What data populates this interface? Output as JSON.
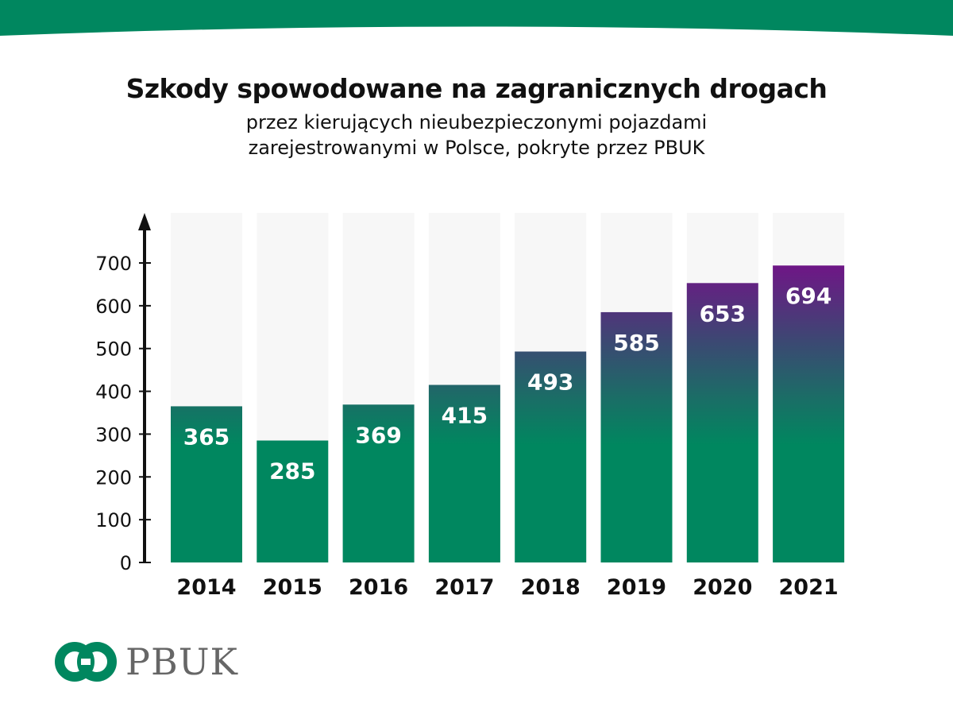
{
  "header": {
    "title": "Szkody spowodowane na zagranicznych drogach",
    "subtitle_line1": "przez kierujących nieubezpieczonymi pojazdami",
    "subtitle_line2": "zarejestrowanymi w Polsce, pokryte przez PBUK"
  },
  "colors": {
    "brand_green": "#00875F",
    "gradient_top": "#711487",
    "bar_background": "#F7F7F7",
    "axis": "#111111"
  },
  "chart_data": {
    "type": "bar",
    "categories": [
      "2014",
      "2015",
      "2016",
      "2017",
      "2018",
      "2019",
      "2020",
      "2021"
    ],
    "values": [
      365,
      285,
      369,
      415,
      493,
      585,
      653,
      694
    ],
    "value_labels": [
      "365",
      "285",
      "369",
      "415",
      "493",
      "585",
      "653",
      "694"
    ],
    "ylim": [
      0,
      800
    ],
    "yticks": [
      0,
      100,
      200,
      300,
      400,
      500,
      600,
      700
    ],
    "ytick_labels": [
      "0",
      "100",
      "200",
      "300",
      "400",
      "500",
      "600",
      "700"
    ],
    "xlabel": "",
    "ylabel": "",
    "grid": false,
    "fill": "vertical gradient green to purple"
  },
  "logo": {
    "text": "PBUK"
  }
}
